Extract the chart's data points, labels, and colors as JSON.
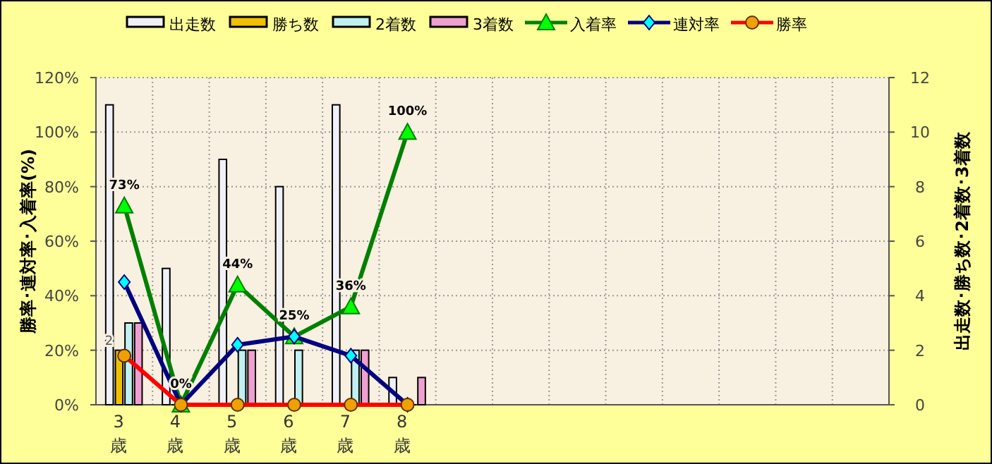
{
  "chart_data": {
    "type": "bar",
    "categories": [
      "3\n歳",
      "4\n歳",
      "5\n歳",
      "6\n歳",
      "7\n歳",
      "8\n歳",
      null,
      null,
      null,
      null,
      null,
      null,
      null,
      null
    ],
    "ylabel": "勝率･連対率･入着率(%)",
    "y2label": "出走数･勝ち数･2着数･3着数",
    "ylim": [
      0,
      120
    ],
    "yticks": [
      {
        "value": 0,
        "label": "0%"
      },
      {
        "value": 20,
        "label": "20%"
      },
      {
        "value": 40,
        "label": "40%"
      },
      {
        "value": 60,
        "label": "60%"
      },
      {
        "value": 80,
        "label": "80%"
      },
      {
        "value": 100,
        "label": "100%"
      },
      {
        "value": 120,
        "label": "120%"
      }
    ],
    "y2lim": [
      0,
      12
    ],
    "y2ticks": [
      0,
      2,
      4,
      6,
      8,
      10,
      12
    ],
    "grid": true,
    "legend": "top",
    "series": [
      {
        "name": "出走数",
        "axis": "y2",
        "color": "#f0f0f8",
        "values": [
          11,
          5,
          9,
          8,
          11,
          1,
          null,
          null,
          null,
          null,
          null,
          null,
          null,
          null
        ]
      },
      {
        "name": "勝ち数",
        "axis": "y2",
        "color": "#f0c000",
        "values": [
          2,
          0,
          0,
          0,
          0,
          0,
          null,
          null,
          null,
          null,
          null,
          null,
          null,
          null
        ],
        "value_labels": [
          "2",
          null,
          null,
          null,
          null,
          null,
          null,
          null,
          null,
          null,
          null,
          null,
          null,
          null
        ]
      },
      {
        "name": "2着数",
        "axis": "y2",
        "color": "#c0f0f0",
        "values": [
          3,
          0,
          2,
          2,
          2,
          0,
          null,
          null,
          null,
          null,
          null,
          null,
          null,
          null
        ]
      },
      {
        "name": "3着数",
        "axis": "y2",
        "color": "#f0a0d0",
        "values": [
          3,
          0,
          2,
          0,
          2,
          1,
          null,
          null,
          null,
          null,
          null,
          null,
          null,
          null
        ]
      },
      {
        "name": "入着率",
        "type": "line",
        "color": "#008000",
        "marker": "triangle",
        "values": [
          73,
          0,
          44,
          25,
          36,
          100,
          null,
          null,
          null,
          null,
          null,
          null,
          null,
          null
        ],
        "value_labels": [
          "73%",
          "0%",
          "44%",
          "25%",
          "36%",
          "100%",
          null,
          null,
          null,
          null,
          null,
          null,
          null,
          null
        ]
      },
      {
        "name": "連対率",
        "type": "line",
        "color": "#000080",
        "marker": "diamond",
        "values": [
          45,
          0,
          22,
          25,
          18,
          0,
          null,
          null,
          null,
          null,
          null,
          null,
          null,
          null
        ]
      },
      {
        "name": "勝率",
        "type": "line",
        "color": "#ff0000",
        "marker": "circle",
        "values": [
          18,
          0,
          0,
          0,
          0,
          0,
          null,
          null,
          null,
          null,
          null,
          null,
          null,
          null
        ]
      }
    ]
  }
}
